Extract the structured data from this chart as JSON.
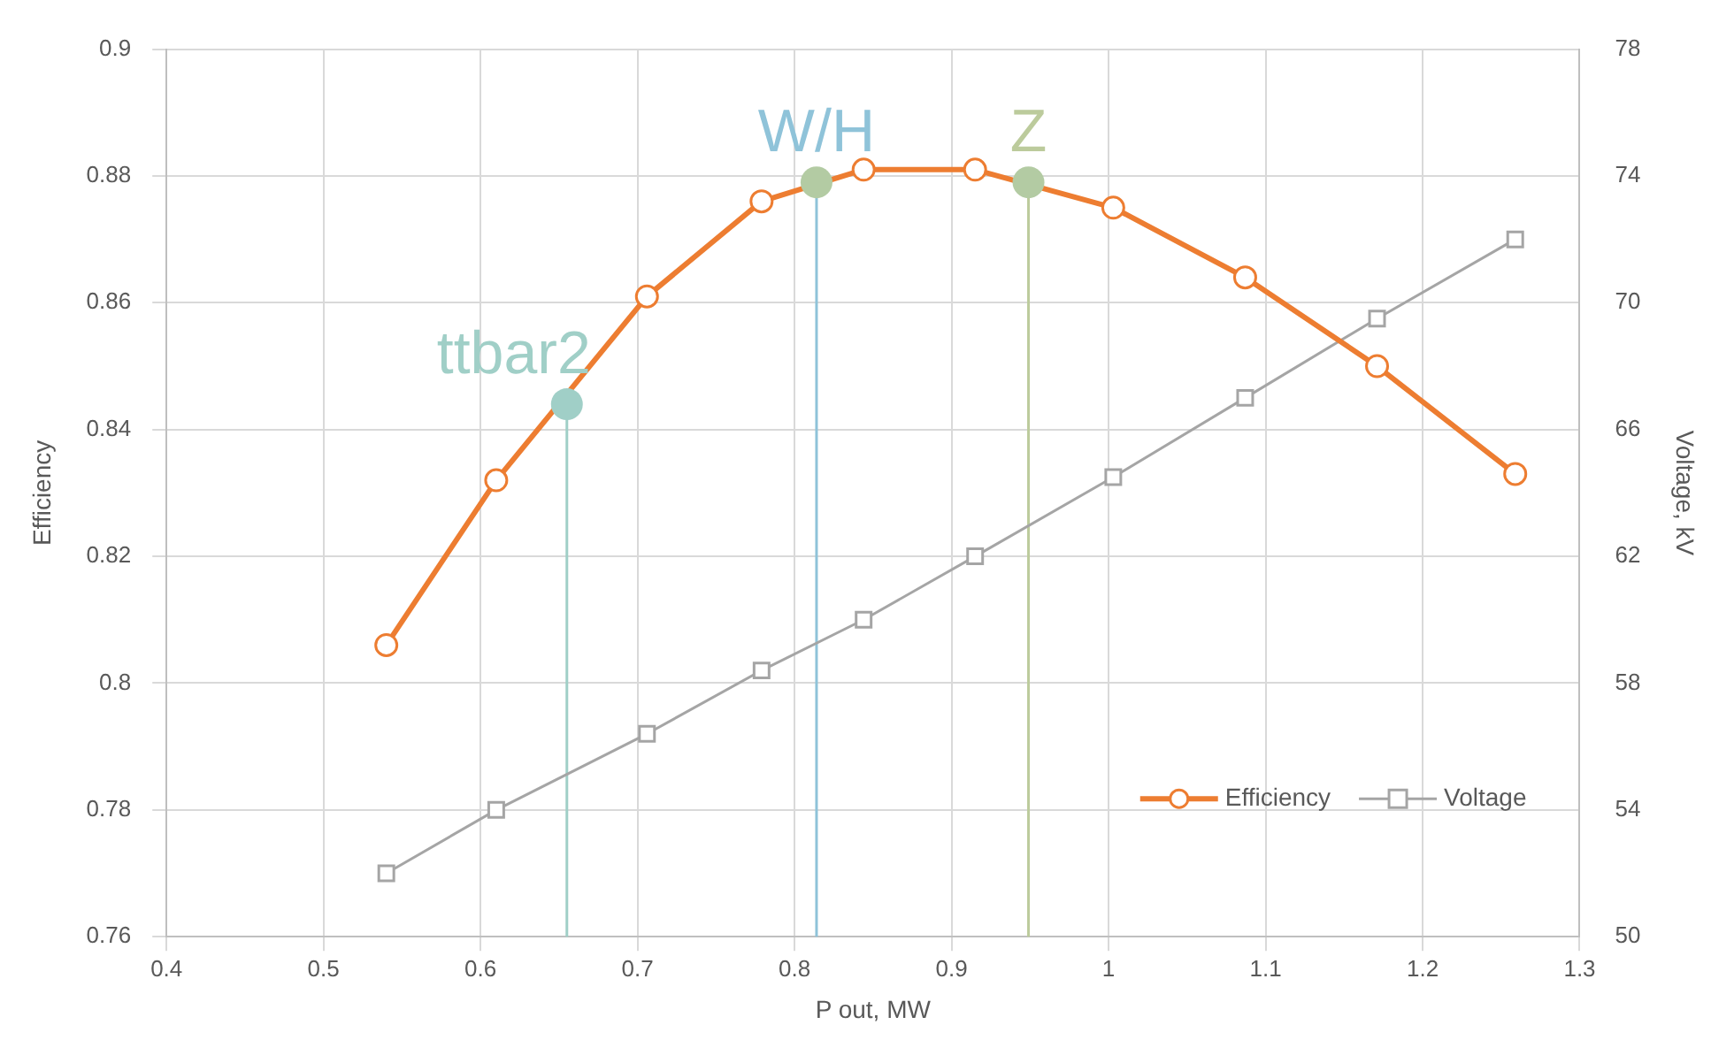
{
  "chart_data": {
    "type": "line",
    "xlabel": "P out, MW",
    "ylabel": "Efficiency",
    "y2label": "Voltage, kV",
    "xlim": [
      0.4,
      1.3
    ],
    "xticks": [
      0.4,
      0.5,
      0.6,
      0.7,
      0.8,
      0.9,
      1,
      1.1,
      1.2,
      1.3
    ],
    "ylim": [
      0.76,
      0.9
    ],
    "yticks": [
      0.76,
      0.78,
      0.8,
      0.82,
      0.84,
      0.86,
      0.88,
      0.9
    ],
    "y2lim": [
      50,
      78
    ],
    "y2ticks": [
      50,
      54,
      58,
      62,
      66,
      70,
      74,
      78
    ],
    "grid": true,
    "legend": "bottom right",
    "series": [
      {
        "name": "Efficiency",
        "type": "line",
        "marker": "circle",
        "color": "#ed7d31",
        "x": [
          0.54,
          0.61,
          0.706,
          0.779,
          0.844,
          0.915,
          1.003,
          1.087,
          1.171,
          1.259
        ],
        "values": [
          0.806,
          0.832,
          0.861,
          0.876,
          0.881,
          0.881,
          0.875,
          0.864,
          0.85,
          0.833
        ]
      },
      {
        "name": "Voltage",
        "type": "line",
        "marker": "square",
        "axis": "y2",
        "color": "#a5a5a5",
        "x": [
          0.54,
          0.61,
          0.706,
          0.779,
          0.844,
          0.915,
          1.003,
          1.087,
          1.171,
          1.259
        ],
        "values": [
          52,
          54,
          56.4,
          58.4,
          60,
          62,
          64.5,
          67,
          69.5,
          72
        ]
      },
      {
        "type": "scatter",
        "marker": "circle",
        "color": "#a0cfc7",
        "x": [
          0.655
        ],
        "values": [
          0.844
        ]
      },
      {
        "type": "scatter",
        "marker": "circle",
        "color": "#b3cba3",
        "x": [
          0.814
        ],
        "values": [
          0.879
        ]
      },
      {
        "type": "scatter",
        "marker": "circle",
        "color": "#b3cba3",
        "x": [
          0.949
        ],
        "values": [
          0.879
        ]
      }
    ],
    "ref_lines": [
      {
        "axis": "x",
        "value": 0.655,
        "color": "#a0cfc7"
      },
      {
        "axis": "x",
        "value": 0.814,
        "color": "#8fc3d9"
      },
      {
        "axis": "x",
        "value": 0.949,
        "color": "#bccb9c"
      }
    ],
    "annotations": [
      {
        "text": "ttbar2",
        "x": 0.655,
        "y": 0.844
      },
      {
        "text": "W/H",
        "x": 0.814,
        "y": 0.879
      },
      {
        "text": "Z",
        "x": 0.949,
        "y": 0.879
      }
    ]
  }
}
